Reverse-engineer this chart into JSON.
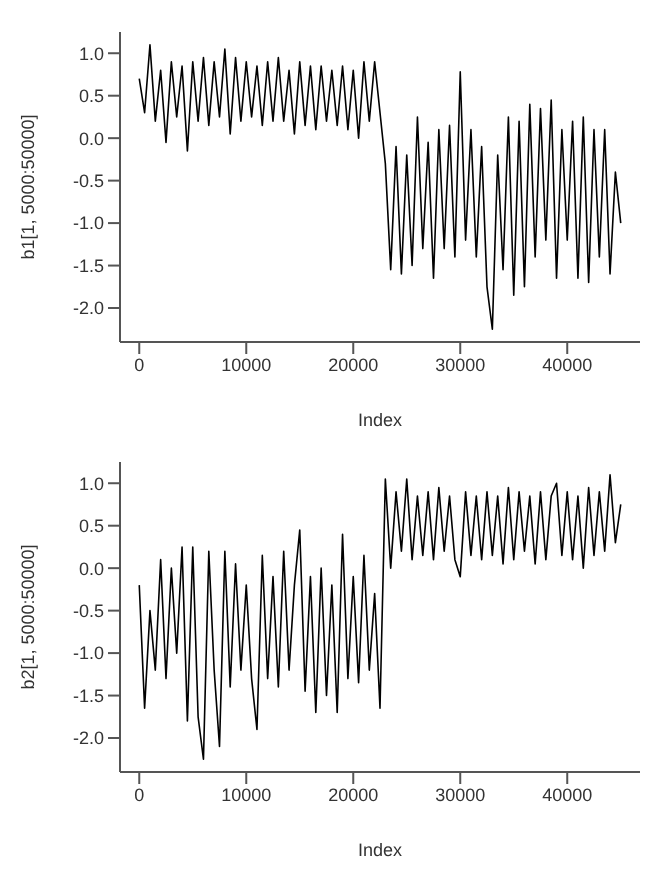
{
  "chart_data": [
    {
      "type": "line",
      "xlabel": "Index",
      "ylabel": "b1[1, 5000:50000]",
      "xlim": [
        -1800,
        46800
      ],
      "xticks": [
        0,
        10000,
        20000,
        30000,
        40000
      ],
      "ylim": [
        -2.4,
        1.25
      ],
      "yticks": [
        {
          "value": -2,
          "label": "-2.0"
        },
        -1.5,
        {
          "value": -1,
          "label": "-1.0"
        },
        -0.5,
        {
          "value": 0,
          "label": "0.0"
        },
        0.5,
        {
          "value": 1,
          "label": "1.0"
        }
      ],
      "grid": false,
      "legend": false,
      "marker": "none",
      "line_style": "solid",
      "x": [
        0,
        500,
        1000,
        1500,
        2000,
        2500,
        3000,
        3500,
        4000,
        4500,
        5000,
        5500,
        6000,
        6500,
        7000,
        7500,
        8000,
        8500,
        9000,
        9500,
        10000,
        10500,
        11000,
        11500,
        12000,
        12500,
        13000,
        13500,
        14000,
        14500,
        15000,
        15500,
        16000,
        16500,
        17000,
        17500,
        18000,
        18500,
        19000,
        19500,
        20000,
        20500,
        21000,
        21500,
        22000,
        22500,
        23000,
        23500,
        24000,
        24500,
        25000,
        25500,
        26000,
        26500,
        27000,
        27500,
        28000,
        28500,
        29000,
        29500,
        30000,
        30500,
        31000,
        31500,
        32000,
        32500,
        33000,
        33500,
        34000,
        34500,
        35000,
        35500,
        36000,
        36500,
        37000,
        37500,
        38000,
        38500,
        39000,
        39500,
        40000,
        40500,
        41000,
        41500,
        42000,
        42500,
        43000,
        43500,
        44000,
        44500,
        45000
      ],
      "series": [
        {
          "color": "#000000",
          "values": [
            0.7,
            0.3,
            1.1,
            0.2,
            0.8,
            -0.05,
            0.9,
            0.25,
            0.85,
            -0.15,
            0.9,
            0.2,
            0.95,
            0.15,
            0.9,
            0.25,
            1.05,
            0.05,
            0.95,
            0.2,
            0.9,
            0.25,
            0.85,
            0.15,
            0.9,
            0.2,
            0.95,
            0.2,
            0.8,
            0.05,
            0.9,
            0.15,
            0.85,
            0.1,
            0.85,
            0.2,
            0.8,
            0.15,
            0.85,
            0.1,
            0.8,
            0.0,
            0.9,
            0.2,
            0.9,
            0.3,
            -0.3,
            -1.55,
            -0.1,
            -1.6,
            -0.2,
            -1.5,
            0.25,
            -1.3,
            -0.05,
            -1.65,
            0.1,
            -1.3,
            0.15,
            -1.4,
            0.78,
            -1.2,
            0.1,
            -1.4,
            -0.1,
            -1.75,
            -2.25,
            -0.2,
            -1.55,
            0.25,
            -1.85,
            0.2,
            -1.75,
            0.4,
            -1.4,
            0.35,
            -1.2,
            0.45,
            -1.65,
            0.1,
            -1.2,
            0.2,
            -1.65,
            0.25,
            -1.7,
            0.1,
            -1.4,
            0.1,
            -1.6,
            -0.4,
            -1.0
          ]
        }
      ]
    },
    {
      "type": "line",
      "xlabel": "Index",
      "ylabel": "b2[1, 5000:50000]",
      "xlim": [
        -1800,
        46800
      ],
      "xticks": [
        0,
        10000,
        20000,
        30000,
        40000
      ],
      "ylim": [
        -2.4,
        1.25
      ],
      "yticks": [
        {
          "value": -2,
          "label": "-2.0"
        },
        -1.5,
        {
          "value": -1,
          "label": "-1.0"
        },
        -0.5,
        {
          "value": 0,
          "label": "0.0"
        },
        0.5,
        {
          "value": 1,
          "label": "1.0"
        }
      ],
      "grid": false,
      "legend": false,
      "marker": "none",
      "line_style": "solid",
      "x": [
        0,
        500,
        1000,
        1500,
        2000,
        2500,
        3000,
        3500,
        4000,
        4500,
        5000,
        5500,
        6000,
        6500,
        7000,
        7500,
        8000,
        8500,
        9000,
        9500,
        10000,
        10500,
        11000,
        11500,
        12000,
        12500,
        13000,
        13500,
        14000,
        14500,
        15000,
        15500,
        16000,
        16500,
        17000,
        17500,
        18000,
        18500,
        19000,
        19500,
        20000,
        20500,
        21000,
        21500,
        22000,
        22500,
        23000,
        23500,
        24000,
        24500,
        25000,
        25500,
        26000,
        26500,
        27000,
        27500,
        28000,
        28500,
        29000,
        29500,
        30000,
        30500,
        31000,
        31500,
        32000,
        32500,
        33000,
        33500,
        34000,
        34500,
        35000,
        35500,
        36000,
        36500,
        37000,
        37500,
        38000,
        38500,
        39000,
        39500,
        40000,
        40500,
        41000,
        41500,
        42000,
        42500,
        43000,
        43500,
        44000,
        44500,
        45000
      ],
      "series": [
        {
          "color": "#000000",
          "values": [
            -0.2,
            -1.65,
            -0.5,
            -1.2,
            0.1,
            -1.3,
            0.0,
            -1.0,
            0.25,
            -1.8,
            0.25,
            -1.75,
            -2.25,
            0.2,
            -1.2,
            -2.1,
            0.2,
            -1.4,
            0.05,
            -1.2,
            -0.2,
            -1.3,
            -1.9,
            0.15,
            -1.3,
            -0.1,
            -1.4,
            0.2,
            -1.2,
            -0.2,
            0.45,
            -1.45,
            -0.1,
            -1.7,
            0.0,
            -1.5,
            -0.2,
            -1.7,
            0.4,
            -1.3,
            -0.1,
            -1.35,
            0.15,
            -1.2,
            -0.3,
            -1.65,
            1.05,
            0.0,
            0.9,
            0.2,
            1.05,
            0.1,
            0.85,
            0.15,
            0.9,
            0.1,
            0.95,
            0.2,
            0.85,
            0.1,
            -0.1,
            0.9,
            0.15,
            0.85,
            0.1,
            0.9,
            0.15,
            0.85,
            0.05,
            0.95,
            0.1,
            0.9,
            0.2,
            0.85,
            0.05,
            0.9,
            0.1,
            0.85,
            1.0,
            0.15,
            0.9,
            0.1,
            0.85,
            0.0,
            0.95,
            0.15,
            0.9,
            0.2,
            1.1,
            0.3,
            0.75
          ]
        }
      ]
    }
  ]
}
